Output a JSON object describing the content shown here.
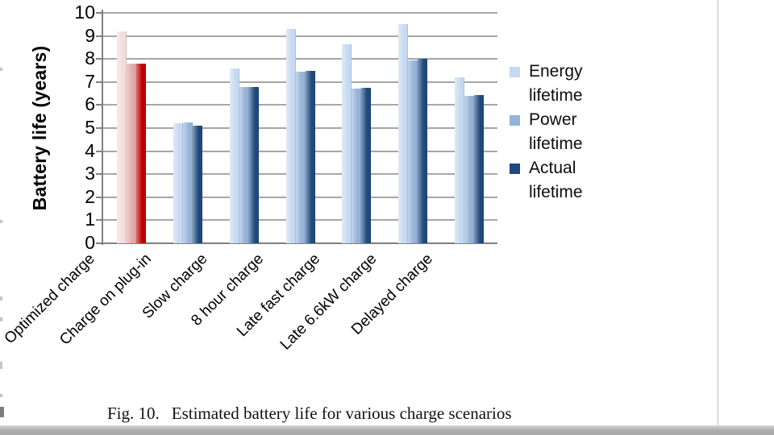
{
  "page": {
    "caption": {
      "label": "Fig. 10.",
      "text": "Estimated battery life for various charge scenarios"
    }
  },
  "chart_data": {
    "type": "bar",
    "title": "",
    "xlabel": "",
    "ylabel": "Battery life (years)",
    "ylim": [
      0,
      10
    ],
    "ytick_step": 1,
    "grid": true,
    "legend_position": "right-outside",
    "categories": [
      "Optimized charge",
      "Charge on plug-in",
      "Slow charge",
      "8 hour charge",
      "Late fast charge",
      "Late 6.6kW charge",
      "Delayed charge"
    ],
    "series": [
      {
        "name": "Energy lifetime",
        "color": "#c5d9f1",
        "highlight_color": "#f2dcdb",
        "values": [
          9.2,
          5.2,
          7.6,
          9.3,
          8.65,
          9.5,
          7.2
        ]
      },
      {
        "name": "Power lifetime",
        "color": "#95b3d7",
        "highlight_color": "#e2a9a8",
        "values": [
          7.8,
          5.25,
          6.8,
          7.45,
          6.7,
          7.95,
          6.4
        ]
      },
      {
        "name": "Actual lifetime",
        "color": "#1f497d",
        "highlight_color": "#c00000",
        "values": [
          7.8,
          5.1,
          6.8,
          7.5,
          6.75,
          8.0,
          6.45
        ]
      }
    ],
    "highlight_category_index": 0,
    "gridline_color": "#a6a6a6",
    "axis_color": "#808080"
  }
}
